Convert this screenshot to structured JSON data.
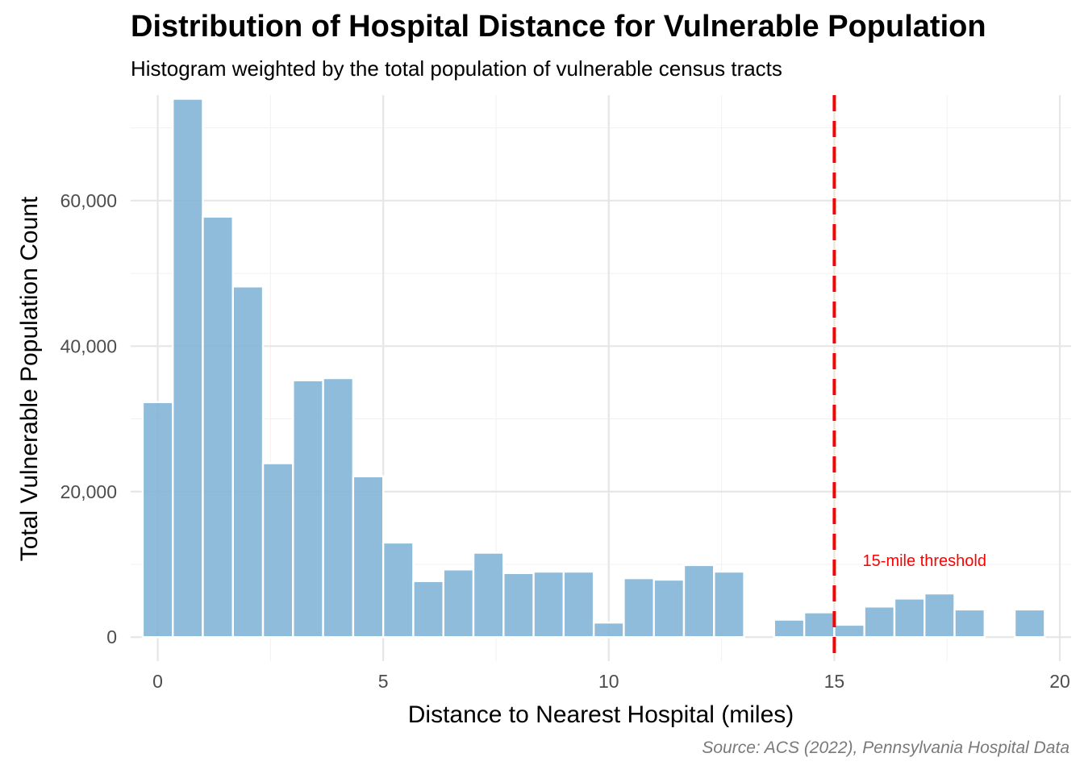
{
  "chart_data": {
    "type": "bar",
    "title": "Distribution of Hospital Distance for Vulnerable Population",
    "subtitle": "Histogram weighted by the total population of vulnerable census tracts",
    "caption": "Source: ACS (2022), Pennsylvania Hospital Data",
    "xlabel": "Distance to Nearest Hospital (miles)",
    "ylabel": "Total Vulnerable Population Count",
    "xlim": [
      -0.6,
      20.25
    ],
    "ylim": [
      -3300,
      74500
    ],
    "bin_width": 0.6667,
    "x_ticks": [
      0,
      5,
      10,
      15,
      20
    ],
    "x_tick_labels": [
      "0",
      "5",
      "10",
      "15",
      "20"
    ],
    "y_ticks": [
      0,
      20000,
      40000,
      60000
    ],
    "y_tick_labels": [
      "0",
      "20,000",
      "40,000",
      "60,000"
    ],
    "grid": true,
    "bar_color": "#7fb3d5",
    "bins": [
      {
        "x": 0.0,
        "value": 32300
      },
      {
        "x": 0.667,
        "value": 74000
      },
      {
        "x": 1.333,
        "value": 57800
      },
      {
        "x": 2.0,
        "value": 48200
      },
      {
        "x": 2.667,
        "value": 23900
      },
      {
        "x": 3.333,
        "value": 35300
      },
      {
        "x": 4.0,
        "value": 35600
      },
      {
        "x": 4.667,
        "value": 22100
      },
      {
        "x": 5.333,
        "value": 13000
      },
      {
        "x": 6.0,
        "value": 7700
      },
      {
        "x": 6.667,
        "value": 9300
      },
      {
        "x": 7.333,
        "value": 11600
      },
      {
        "x": 8.0,
        "value": 8800
      },
      {
        "x": 8.667,
        "value": 9000
      },
      {
        "x": 9.333,
        "value": 9000
      },
      {
        "x": 10.0,
        "value": 2000
      },
      {
        "x": 10.667,
        "value": 8100
      },
      {
        "x": 11.333,
        "value": 7900
      },
      {
        "x": 12.0,
        "value": 9900
      },
      {
        "x": 12.667,
        "value": 9000
      },
      {
        "x": 14.0,
        "value": 2400
      },
      {
        "x": 14.667,
        "value": 3400
      },
      {
        "x": 15.333,
        "value": 1700
      },
      {
        "x": 16.0,
        "value": 4200
      },
      {
        "x": 16.667,
        "value": 5300
      },
      {
        "x": 17.333,
        "value": 6000
      },
      {
        "x": 18.0,
        "value": 3800
      },
      {
        "x": 19.333,
        "value": 3800
      }
    ],
    "threshold": {
      "x": 15,
      "color": "#ff0000",
      "label": "15-mile threshold"
    }
  }
}
